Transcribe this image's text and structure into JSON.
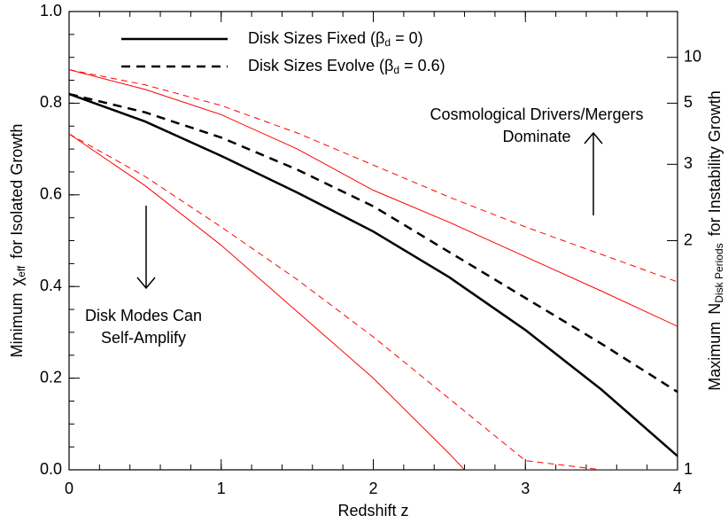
{
  "chart_data": {
    "type": "line",
    "xlabel": "Redshift z",
    "ylabel": {
      "pre": "Minimum",
      "symbol": "χ",
      "sub": "eff",
      "post": "for Isolated Growth"
    },
    "y2label": {
      "pre": "Maximum",
      "symbol": "N",
      "sub": "Disk Periods",
      "post": "for Instability Growth"
    },
    "xlim": [
      0,
      4
    ],
    "xticks": [
      0,
      1,
      2,
      3,
      4
    ],
    "ylim": [
      0,
      1
    ],
    "yticks": [
      {
        "value": 0,
        "label": "0.0"
      },
      0.2,
      0.4,
      0.6,
      0.8,
      {
        "value": 1,
        "label": "1.0"
      }
    ],
    "y2scale": "inverse",
    "y2ticks": [
      1,
      2,
      3,
      5,
      10
    ],
    "legend": "upper left",
    "series": [
      {
        "name": "Disk Sizes Fixed (β",
        "name_sub": "d",
        "name_post": " = 0)",
        "legend": true,
        "color": "#000000",
        "style": "solid",
        "width": 2.5,
        "x": [
          0,
          0.5,
          1,
          1.5,
          2,
          2.5,
          3,
          3.5,
          4
        ],
        "values": [
          0.82,
          0.76,
          0.685,
          0.605,
          0.52,
          0.42,
          0.305,
          0.175,
          0.03
        ]
      },
      {
        "name": "Disk Sizes Evolve (β",
        "name_sub": "d",
        "name_post": " = 0.6)",
        "legend": true,
        "color": "#000000",
        "style": "dashed",
        "width": 2.5,
        "x": [
          0,
          0.5,
          1,
          1.5,
          2,
          2.5,
          3,
          3.5,
          4
        ],
        "values": [
          0.82,
          0.78,
          0.725,
          0.655,
          0.575,
          0.475,
          0.375,
          0.275,
          0.17
        ]
      },
      {
        "color": "#ff0000",
        "style": "solid",
        "width": 1,
        "x": [
          0,
          0.5,
          1,
          1.5,
          2,
          2.5,
          3,
          3.5,
          4
        ],
        "values": [
          0.873,
          0.83,
          0.775,
          0.7,
          0.61,
          0.54,
          0.465,
          0.39,
          0.313
        ]
      },
      {
        "color": "#ff0000",
        "style": "dashed",
        "width": 1,
        "x": [
          0,
          0.5,
          1,
          1.5,
          2,
          2.5,
          3,
          3.5,
          4
        ],
        "values": [
          0.873,
          0.84,
          0.795,
          0.735,
          0.665,
          0.595,
          0.53,
          0.47,
          0.41
        ]
      },
      {
        "color": "#ff0000",
        "style": "solid",
        "width": 1,
        "x": [
          0,
          0.5,
          1,
          1.5,
          2,
          2.5,
          2.6,
          3,
          3.5,
          4
        ],
        "values": [
          0.733,
          0.62,
          0.49,
          0.345,
          0.2,
          0.035,
          0,
          0,
          0,
          0
        ]
      },
      {
        "color": "#ff0000",
        "style": "dashed",
        "width": 1,
        "x": [
          0,
          0.5,
          1,
          1.5,
          2,
          2.5,
          3,
          3.5,
          4
        ],
        "values": [
          0.733,
          0.64,
          0.53,
          0.415,
          0.29,
          0.155,
          0.02,
          0,
          0
        ]
      }
    ],
    "annotations": [
      {
        "lines": [
          "Cosmological Drivers/Mergers",
          "Dominate"
        ],
        "arrow": "up"
      },
      {
        "lines": [
          "Disk Modes Can",
          "Self-Amplify"
        ],
        "arrow": "down"
      }
    ]
  }
}
